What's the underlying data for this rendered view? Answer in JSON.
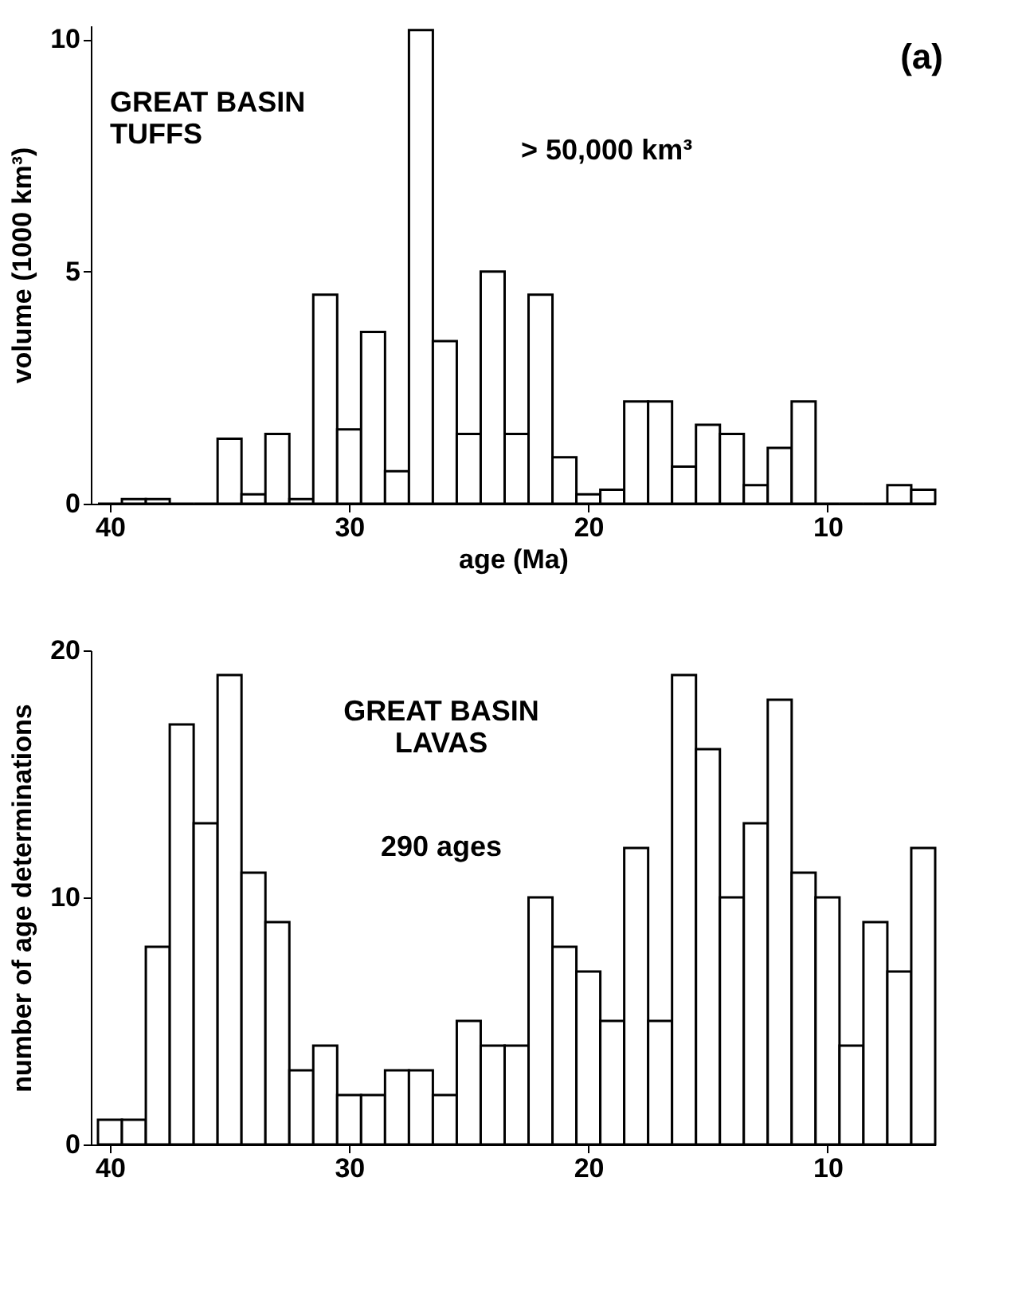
{
  "chart_data": [
    {
      "type": "histogram",
      "xlabel": "age (Ma)",
      "ylabel": "volume (1000 km³)",
      "bins": [
        40.5,
        39.5,
        38.5,
        37.5,
        36.5,
        35.5,
        34.5,
        33.5,
        32.5,
        31.5,
        30.5,
        29.5,
        28.5,
        27.5,
        26.5,
        25.5,
        24.5,
        23.5,
        22.5,
        21.5,
        20.5,
        19.5,
        18.5,
        17.5,
        16.5,
        15.5,
        14.5,
        13.5,
        12.5,
        11.5,
        10.5,
        9.5,
        8.5,
        7.5,
        6.5,
        5.5
      ],
      "values": [
        0,
        0.1,
        0.1,
        0,
        0,
        1.4,
        0.2,
        1.5,
        0.1,
        4.5,
        1.6,
        3.7,
        0.7,
        10.2,
        3.5,
        1.5,
        5.0,
        1.5,
        4.5,
        1.0,
        0.2,
        0.3,
        2.2,
        2.2,
        0.8,
        1.7,
        1.5,
        0.4,
        1.2,
        2.2,
        0,
        0,
        0,
        0.4,
        0.3
      ],
      "color": "#000000",
      "xlim": [
        40.8,
        5.5
      ],
      "ylim": [
        0,
        10.3
      ],
      "xticks": [
        40,
        30,
        20,
        10
      ],
      "yticks": [
        0,
        5,
        10
      ],
      "grid": false,
      "annotations": [
        "GREAT BASIN\nTUFFS",
        "> 50,000 km³",
        "(a)"
      ]
    },
    {
      "type": "histogram",
      "ylabel": "number of age determinations",
      "bins": [
        40.5,
        39.5,
        38.5,
        37.5,
        36.5,
        35.5,
        34.5,
        33.5,
        32.5,
        31.5,
        30.5,
        29.5,
        28.5,
        27.5,
        26.5,
        25.5,
        24.5,
        23.5,
        22.5,
        21.5,
        20.5,
        19.5,
        18.5,
        17.5,
        16.5,
        15.5,
        14.5,
        13.5,
        12.5,
        11.5,
        10.5,
        9.5,
        8.5,
        7.5,
        6.5,
        5.5
      ],
      "values": [
        1,
        1,
        8,
        17,
        13,
        19,
        11,
        9,
        3,
        4,
        2,
        2,
        3,
        3,
        2,
        5,
        4,
        4,
        10,
        8,
        7,
        5,
        12,
        5,
        19,
        16,
        10,
        13,
        18,
        11,
        10,
        4,
        9,
        7,
        12
      ],
      "color": "#000000",
      "xlim": [
        40.8,
        5.5
      ],
      "ylim": [
        0,
        20
      ],
      "xticks": [
        40,
        30,
        20,
        10
      ],
      "yticks": [
        0,
        10,
        20
      ],
      "grid": false,
      "annotations": [
        "GREAT BASIN\nLAVAS",
        "290 ages"
      ]
    }
  ]
}
